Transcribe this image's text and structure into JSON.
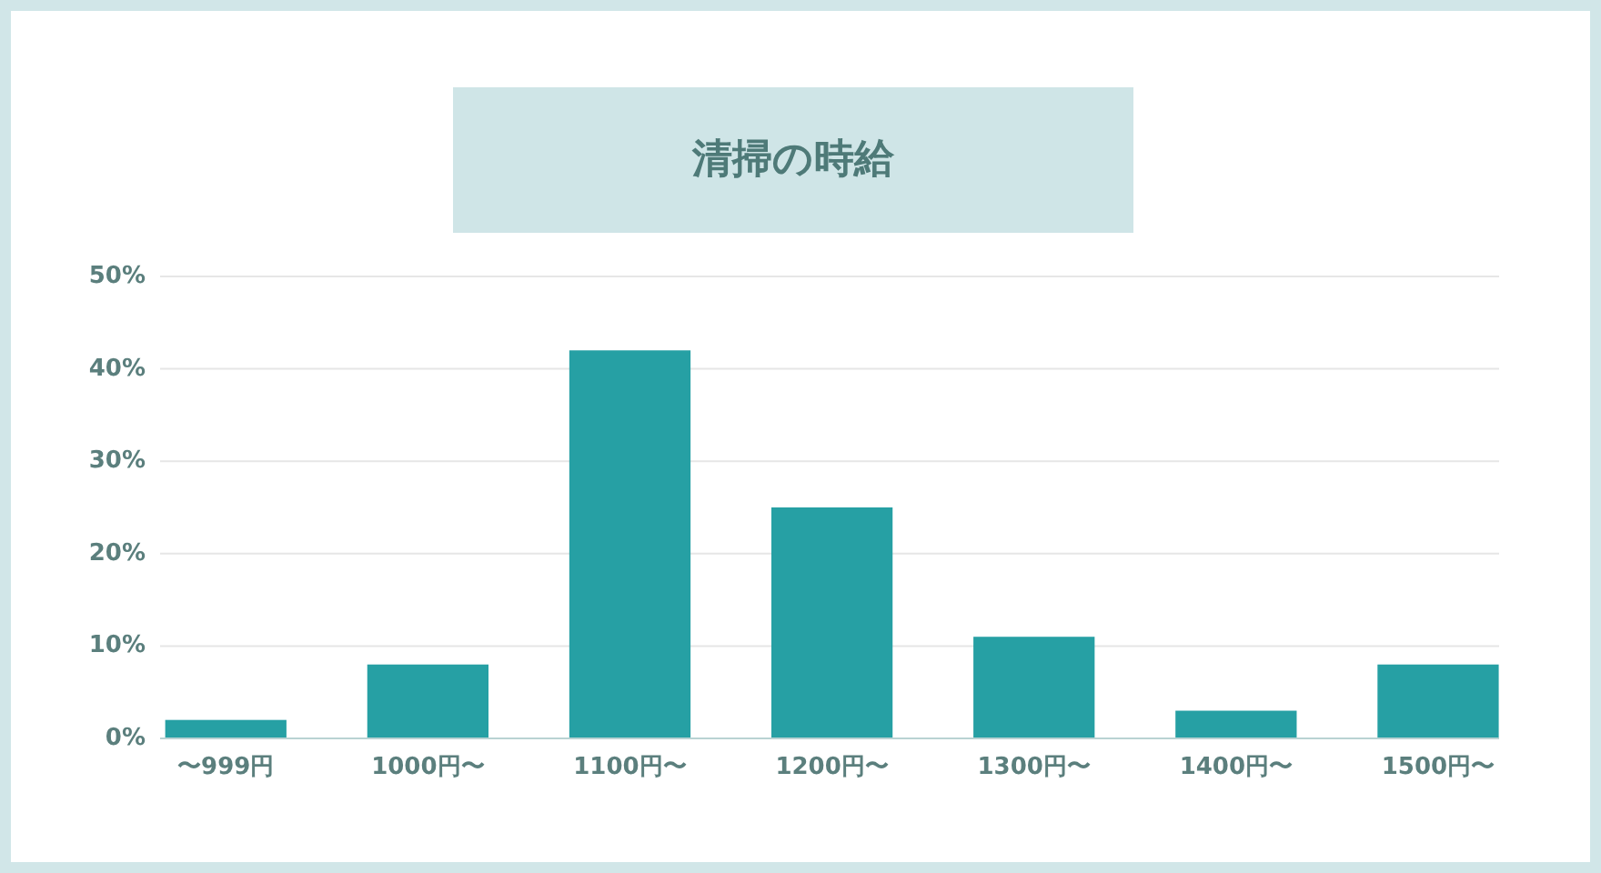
{
  "chart_data": {
    "type": "bar",
    "title": "清掃の時給",
    "categories": [
      "〜999円",
      "1000円〜",
      "1100円〜",
      "1200円〜",
      "1300円〜",
      "1400円〜",
      "1500円〜"
    ],
    "values": [
      2,
      8,
      42,
      25,
      11,
      3,
      8
    ],
    "color": "#26a0a4",
    "ylim": [
      0,
      50
    ],
    "yticks": [
      {
        "value": 0,
        "label": "0%"
      },
      {
        "value": 10,
        "label": "10%"
      },
      {
        "value": 20,
        "label": "20%"
      },
      {
        "value": 30,
        "label": "30%"
      },
      {
        "value": 40,
        "label": "40%"
      },
      {
        "value": 50,
        "label": "50%"
      }
    ],
    "grid": "y"
  }
}
